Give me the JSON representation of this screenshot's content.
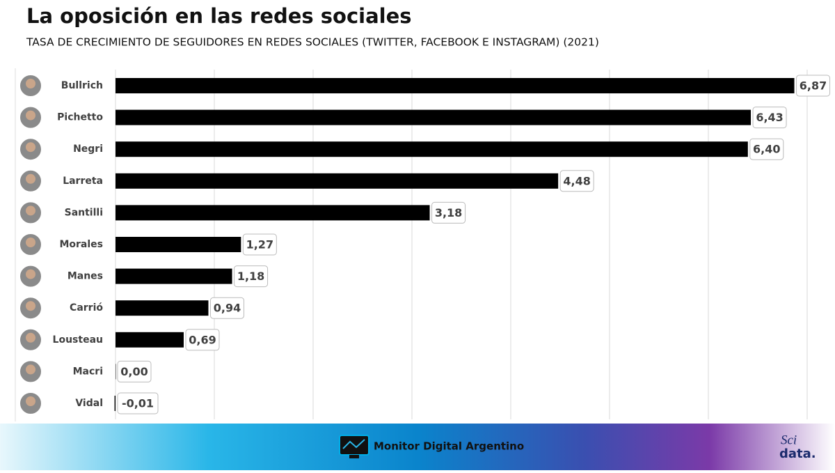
{
  "chart_data": {
    "type": "bar",
    "orientation": "horizontal",
    "title": "La oposición en las redes sociales",
    "subtitle": "TASA DE CRECIMIENTO  DE SEGUIDORES  EN REDES SOCIALES (TWITTER,  FACEBOOK E INSTAGRAM) (2021)",
    "categories": [
      "Bullrich",
      "Pichetto",
      "Negri",
      "Larreta",
      "Santilli",
      "Morales",
      "Manes",
      "Carrió",
      "Lousteau",
      "Macri",
      "Vidal"
    ],
    "values": [
      6.87,
      6.43,
      6.4,
      4.48,
      3.18,
      1.27,
      1.18,
      0.94,
      0.69,
      0.0,
      -0.01
    ],
    "value_labels": [
      "6,87",
      "6,43",
      "6,40",
      "4,48",
      "3,18",
      "1,27",
      "1,18",
      "0,94",
      "0,69",
      "0,00",
      "-0,01"
    ],
    "color": "#000000",
    "xlim": [
      0,
      7
    ],
    "xticks": [
      0,
      1,
      2,
      3,
      4,
      5,
      6,
      7
    ],
    "grid": true
  },
  "footer": {
    "brand": "Monitor Digital Argentino",
    "logo_top": "Sci",
    "logo_bottom": "data."
  }
}
